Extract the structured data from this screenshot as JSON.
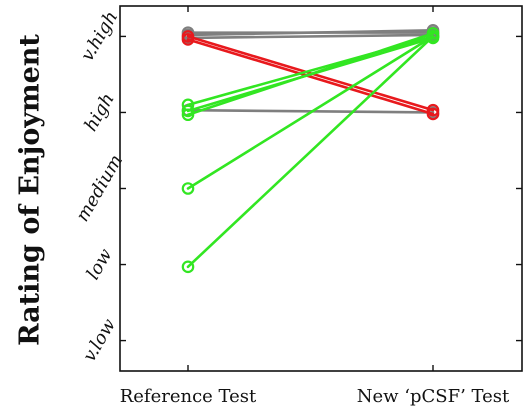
{
  "chart_data": {
    "type": "line",
    "title": "",
    "xlabel": "",
    "ylabel": "Rating of Enjoyment",
    "categories": [
      "Reference Test",
      "New ‘pCSF’ Test"
    ],
    "y_tick_labels": [
      "v.low",
      "low",
      "medium",
      "high",
      "v.high"
    ],
    "y_tick_values": [
      1,
      2,
      3,
      4,
      5
    ],
    "ylim": [
      0.6,
      5.4
    ],
    "grid": false,
    "legend": "none",
    "series": [
      {
        "color": "#7f7f7f",
        "values": [
          5.05,
          5.05
        ]
      },
      {
        "color": "#7f7f7f",
        "values": [
          5.02,
          5.08
        ]
      },
      {
        "color": "#7f7f7f",
        "values": [
          4.98,
          5.02
        ]
      },
      {
        "color": "#7f7f7f",
        "values": [
          4.03,
          4.0
        ]
      },
      {
        "color": "#e8191d",
        "values": [
          5.0,
          4.03
        ]
      },
      {
        "color": "#e8191d",
        "values": [
          4.96,
          3.98
        ]
      },
      {
        "color": "#32e622",
        "values": [
          4.1,
          5.0
        ]
      },
      {
        "color": "#32e622",
        "values": [
          4.02,
          4.98
        ]
      },
      {
        "color": "#32e622",
        "values": [
          3.97,
          5.04
        ]
      },
      {
        "color": "#32e622",
        "values": [
          3.0,
          5.0
        ]
      },
      {
        "color": "#32e622",
        "values": [
          1.97,
          5.0
        ]
      }
    ]
  }
}
